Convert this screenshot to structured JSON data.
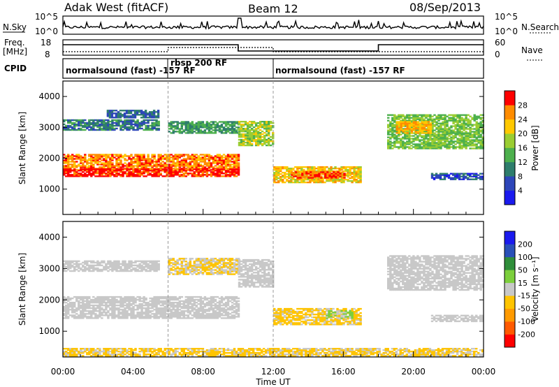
{
  "header": {
    "title": "Adak West (fitACF)",
    "beam": "Beam 12",
    "date": "08/Sep/2013"
  },
  "noise_panel": {
    "left_label": "N.Sky",
    "right_label": "N.Search",
    "left_ticks": [
      "10^5",
      "10^0"
    ],
    "right_ticks": [
      "10^5",
      "10^0"
    ]
  },
  "freq_panel": {
    "left_label_1": "Freq.",
    "left_label_2": "[MHz]",
    "left_ticks": [
      "18",
      "8"
    ],
    "right_label": "Nave",
    "right_ticks": [
      "60",
      "0"
    ]
  },
  "cpid_panel": {
    "label": "CPID",
    "segments": [
      {
        "label": "normalsound (fast) -157 RF",
        "start_hr": 0,
        "end_hr": 6
      },
      {
        "label": "rbsp 200 RF",
        "start_hr": 6,
        "end_hr": 12
      },
      {
        "label": "normalsound (fast) -157 RF",
        "start_hr": 12,
        "end_hr": 24
      }
    ]
  },
  "chart_data": [
    {
      "type": "heatmap",
      "name": "power",
      "ylabel": "Slant Range [km]",
      "xlabel": "Time UT",
      "x_ticks": [
        "00:00",
        "04:00",
        "08:00",
        "12:00",
        "16:00",
        "20:00",
        "00:00"
      ],
      "x_range_hours": [
        0,
        24
      ],
      "y_ticks": [
        1000,
        2000,
        3000,
        4000
      ],
      "y_range_km": [
        180,
        4500
      ],
      "colorbar_label": "Power [dB]",
      "colorbar_ticks": [
        "28",
        "24",
        "20",
        "16",
        "12",
        "8",
        "4"
      ],
      "colorbar_range": [
        0,
        32
      ],
      "colors": [
        "#1a1aee",
        "#2d46b9",
        "#2e7d6c",
        "#4db04d",
        "#9acd32",
        "#ffc800",
        "#ff8c00",
        "#ff0000"
      ],
      "bands": [
        {
          "t0": 0.0,
          "t1": 10.0,
          "r0": 1600,
          "r1": 2100,
          "power": 26
        },
        {
          "t0": 0.0,
          "t1": 10.0,
          "r0": 1400,
          "r1": 1650,
          "power": 30
        },
        {
          "t0": 0.0,
          "t1": 5.5,
          "r0": 2900,
          "r1": 3250,
          "power": 10
        },
        {
          "t0": 2.5,
          "t1": 5.5,
          "r0": 3300,
          "r1": 3550,
          "power": 8
        },
        {
          "t0": 6.0,
          "t1": 10.0,
          "r0": 2800,
          "r1": 3200,
          "power": 12
        },
        {
          "t0": 10.0,
          "t1": 12.0,
          "r0": 2400,
          "r1": 3200,
          "power": 18
        },
        {
          "t0": 12.0,
          "t1": 17.0,
          "r0": 1200,
          "r1": 1700,
          "power": 22
        },
        {
          "t0": 13.0,
          "t1": 16.0,
          "r0": 1350,
          "r1": 1550,
          "power": 28
        },
        {
          "t0": 18.5,
          "t1": 24.0,
          "r0": 2300,
          "r1": 3400,
          "power": 16
        },
        {
          "t0": 19.0,
          "t1": 21.0,
          "r0": 2800,
          "r1": 3200,
          "power": 24
        },
        {
          "t0": 21.0,
          "t1": 24.0,
          "r0": 1300,
          "r1": 1500,
          "power": 6
        }
      ]
    },
    {
      "type": "heatmap",
      "name": "velocity",
      "ylabel": "Slant Range [km]",
      "xlabel": "Time UT",
      "x_ticks": [
        "00:00",
        "04:00",
        "08:00",
        "12:00",
        "16:00",
        "20:00",
        "00:00"
      ],
      "x_range_hours": [
        0,
        24
      ],
      "y_ticks": [
        1000,
        2000,
        3000,
        4000
      ],
      "y_range_km": [
        180,
        4500
      ],
      "colorbar_label": "Velocity [m s⁻¹]",
      "colorbar_ticks": [
        "200",
        "100",
        "50",
        "15",
        "-15",
        "-50",
        "-100",
        "-200"
      ],
      "colorbar_range": [
        -250,
        250
      ],
      "colors": [
        "#ff0000",
        "#ff5a00",
        "#ff9a00",
        "#ffc400",
        "#c8c8c8",
        "#7ccf3c",
        "#2f8e3a",
        "#2950b8",
        "#1a1aee"
      ],
      "bands": [
        {
          "t0": 0.0,
          "t1": 10.0,
          "r0": 1400,
          "r1": 2100,
          "velocity": 0
        },
        {
          "t0": 0.0,
          "t1": 5.5,
          "r0": 2900,
          "r1": 3250,
          "velocity": 0
        },
        {
          "t0": 6.0,
          "t1": 10.0,
          "r0": 2800,
          "r1": 3300,
          "velocity": -30
        },
        {
          "t0": 10.0,
          "t1": 12.0,
          "r0": 2400,
          "r1": 3300,
          "velocity": 0
        },
        {
          "t0": 12.0,
          "t1": 17.0,
          "r0": 1200,
          "r1": 1700,
          "velocity": -40
        },
        {
          "t0": 15.0,
          "t1": 16.5,
          "r0": 1400,
          "r1": 1650,
          "velocity": 30
        },
        {
          "t0": 18.5,
          "t1": 24.0,
          "r0": 2300,
          "r1": 3400,
          "velocity": 0
        },
        {
          "t0": 21.0,
          "t1": 24.0,
          "r0": 1300,
          "r1": 1500,
          "velocity": 0
        },
        {
          "t0": 0.0,
          "t1": 24.0,
          "r0": 200,
          "r1": 450,
          "velocity": -35
        }
      ]
    }
  ],
  "xlabel": "Time UT"
}
